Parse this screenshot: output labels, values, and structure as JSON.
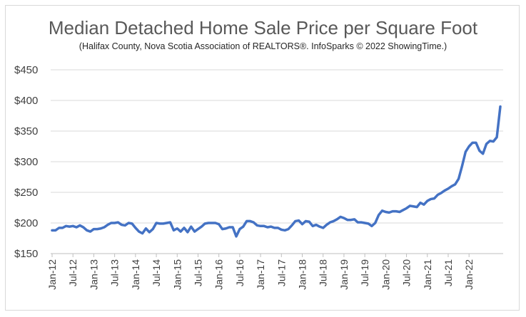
{
  "chart_data": {
    "type": "line",
    "title": "Median Detached Home Sale Price per Square Foot",
    "subtitle": "(Halifax County, Nova Scotia Association of REALTORS®. InfoSparks © 2022 ShowingTime.)",
    "xlabel": "",
    "ylabel": "",
    "ylim": [
      150,
      450
    ],
    "yticks": [
      150,
      200,
      250,
      300,
      350,
      400,
      450
    ],
    "ytick_labels": [
      "$150",
      "$200",
      "$250",
      "$300",
      "$350",
      "$400",
      "$450"
    ],
    "xtick_labels": [
      "Jan-12",
      "Jul-12",
      "Jan-13",
      "Jul-13",
      "Jan-14",
      "Jul-14",
      "Jan-15",
      "Jul-15",
      "Jan-16",
      "Jul-16",
      "Jan-17",
      "Jul-17",
      "Jan-18",
      "Jul-18",
      "Jan-19",
      "Jul-19",
      "Jan-20",
      "Jul-20",
      "Jan-21",
      "Jul-21",
      "Jan-22"
    ],
    "grid": true,
    "legend": "none",
    "line_color": "#4472c4",
    "series": [
      {
        "values": [
          188,
          188,
          192,
          192,
          195,
          194,
          195,
          193,
          196,
          193,
          188,
          186,
          190,
          190,
          191,
          193,
          197,
          200,
          200,
          201,
          197,
          196,
          200,
          199,
          192,
          186,
          183,
          191,
          185,
          190,
          200,
          199,
          199,
          200,
          201,
          188,
          191,
          186,
          192,
          185,
          194,
          186,
          190,
          194,
          199,
          200,
          200,
          200,
          198,
          190,
          191,
          193,
          193,
          178,
          190,
          194,
          203,
          203,
          201,
          196,
          195,
          195,
          193,
          194,
          192,
          192,
          189,
          188,
          190,
          196,
          203,
          204,
          198,
          203,
          202,
          195,
          197,
          194,
          192,
          197,
          201,
          203,
          206,
          210,
          208,
          205,
          205,
          206,
          201,
          201,
          200,
          199,
          195,
          200,
          213,
          220,
          218,
          217,
          219,
          219,
          218,
          221,
          224,
          228,
          227,
          226,
          233,
          230,
          236,
          239,
          240,
          246,
          249,
          253,
          256,
          260,
          263,
          272,
          293,
          316,
          325,
          331,
          331,
          318,
          313,
          329,
          334,
          333,
          340,
          390
        ]
      }
    ]
  }
}
